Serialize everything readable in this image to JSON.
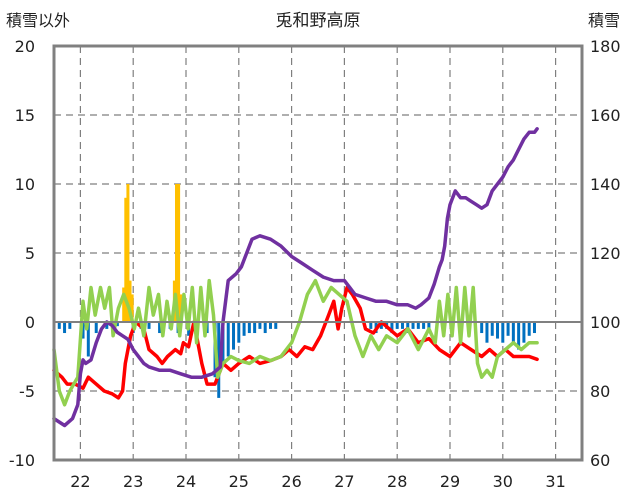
{
  "chart_data": {
    "type": "line",
    "title": "兎和野高原",
    "left_axis_label": "積雪以外",
    "right_axis_label": "積雪",
    "left_ylim": [
      -10,
      20
    ],
    "left_ticks": [
      "20",
      "15",
      "10",
      "5",
      "0",
      "-5",
      "-10"
    ],
    "right_ylim": [
      60,
      180
    ],
    "right_ticks": [
      "180",
      "160",
      "140",
      "120",
      "100",
      "80",
      "60"
    ],
    "xlim": [
      21.5,
      31.5
    ],
    "x_ticks": [
      "22",
      "23",
      "24",
      "25",
      "26",
      "27",
      "28",
      "29",
      "30",
      "31"
    ],
    "grid": "dashed",
    "colors": {
      "temperature": "#ff0000",
      "dewpoint": "#92d050",
      "snow_depth": "#7030a0",
      "precipitation": "#ffc000",
      "negative_bars": "#0070c0",
      "zero_line": "#808080",
      "frame": "#808080",
      "grid": "#7f7f7f"
    },
    "series": [
      {
        "name": "temperature",
        "axis": "left",
        "x": [
          21.5,
          21.65,
          21.75,
          21.9,
          22.05,
          22.15,
          22.3,
          22.45,
          22.6,
          22.72,
          22.8,
          22.85,
          22.95,
          23.05,
          23.2,
          23.3,
          23.45,
          23.55,
          23.65,
          23.8,
          23.9,
          23.95,
          24.05,
          24.15,
          24.3,
          24.4,
          24.55,
          24.7,
          24.85,
          25.0,
          25.2,
          25.4,
          25.6,
          25.8,
          25.95,
          26.1,
          26.25,
          26.4,
          26.55,
          26.7,
          26.8,
          26.88,
          26.95,
          27.05,
          27.15,
          27.3,
          27.4,
          27.55,
          27.7,
          27.85,
          28.0,
          28.2,
          28.4,
          28.6,
          28.8,
          29.0,
          29.2,
          29.4,
          29.6,
          29.75,
          29.9,
          30.05,
          30.2,
          30.35,
          30.5,
          30.65
        ],
        "values": [
          -3.5,
          -4.0,
          -4.5,
          -4.5,
          -4.8,
          -4.0,
          -4.5,
          -5.0,
          -5.2,
          -5.5,
          -5.0,
          -3.0,
          -1.0,
          0.0,
          -0.5,
          -2.0,
          -2.5,
          -3.0,
          -2.5,
          -2.0,
          -2.3,
          -1.5,
          -1.8,
          0.0,
          -3.0,
          -4.5,
          -4.5,
          -3.0,
          -3.5,
          -3.0,
          -2.5,
          -3.0,
          -2.8,
          -2.5,
          -2.0,
          -2.5,
          -1.8,
          -2.0,
          -1.0,
          0.5,
          1.5,
          -0.5,
          1.0,
          2.5,
          2.0,
          1.0,
          -0.5,
          -0.8,
          0.0,
          -0.5,
          -1.0,
          -0.5,
          -1.5,
          -1.2,
          -2.0,
          -2.5,
          -1.5,
          -2.0,
          -2.5,
          -2.0,
          -2.5,
          -2.0,
          -2.5,
          -2.5,
          -2.5,
          -2.7
        ]
      },
      {
        "name": "dewpoint",
        "axis": "left",
        "x": [
          21.5,
          21.6,
          21.7,
          21.8,
          21.95,
          22.05,
          22.12,
          22.2,
          22.28,
          22.38,
          22.46,
          22.55,
          22.62,
          22.72,
          22.82,
          22.92,
          23.02,
          23.1,
          23.2,
          23.3,
          23.38,
          23.48,
          23.56,
          23.64,
          23.72,
          23.8,
          23.88,
          23.96,
          24.04,
          24.12,
          24.2,
          24.28,
          24.36,
          24.44,
          24.52,
          24.6,
          24.7,
          24.85,
          25.0,
          25.2,
          25.4,
          25.6,
          25.8,
          26.0,
          26.15,
          26.3,
          26.45,
          26.6,
          26.75,
          26.9,
          27.05,
          27.2,
          27.35,
          27.5,
          27.65,
          27.8,
          28.0,
          28.2,
          28.4,
          28.6,
          28.72,
          28.8,
          28.88,
          28.96,
          29.04,
          29.12,
          29.2,
          29.28,
          29.36,
          29.44,
          29.52,
          29.6,
          29.7,
          29.8,
          29.9,
          30.05,
          30.2,
          30.35,
          30.5,
          30.65
        ],
        "values": [
          -2.0,
          -5.0,
          -6.0,
          -5.0,
          -4.0,
          1.5,
          -0.5,
          2.5,
          0.5,
          2.5,
          1.0,
          2.5,
          -1.0,
          1.0,
          2.0,
          1.0,
          -0.5,
          1.0,
          -1.0,
          2.5,
          0.5,
          2.0,
          -1.0,
          1.5,
          -0.5,
          2.0,
          -1.0,
          2.0,
          -0.5,
          2.5,
          -1.5,
          2.5,
          -1.0,
          3.0,
          0.5,
          -4.0,
          -3.0,
          -2.5,
          -2.8,
          -3.0,
          -2.5,
          -2.8,
          -2.5,
          -1.5,
          0.0,
          2.0,
          3.0,
          1.5,
          2.5,
          2.0,
          1.5,
          -1.0,
          -2.5,
          -1.0,
          -2.0,
          -1.0,
          -1.5,
          -0.5,
          -2.0,
          -0.5,
          -1.5,
          1.5,
          -1.0,
          2.0,
          -1.0,
          2.5,
          -1.5,
          2.5,
          -1.0,
          2.5,
          -3.0,
          -4.0,
          -3.5,
          -4.0,
          -2.5,
          -2.0,
          -1.5,
          -2.0,
          -1.5,
          -1.5
        ]
      },
      {
        "name": "snow_depth",
        "axis": "right",
        "x": [
          21.5,
          21.7,
          21.85,
          21.95,
          22.0,
          22.05,
          22.1,
          22.2,
          22.3,
          22.4,
          22.5,
          22.6,
          22.7,
          22.8,
          22.9,
          23.0,
          23.1,
          23.2,
          23.3,
          23.5,
          23.7,
          23.9,
          24.1,
          24.3,
          24.5,
          24.65,
          24.7,
          24.8,
          24.95,
          25.05,
          25.15,
          25.25,
          25.4,
          25.6,
          25.8,
          26.0,
          26.2,
          26.4,
          26.6,
          26.8,
          27.0,
          27.1,
          27.2,
          27.4,
          27.6,
          27.8,
          28.0,
          28.2,
          28.35,
          28.45,
          28.6,
          28.7,
          28.8,
          28.85,
          28.9,
          28.95,
          29.0,
          29.1,
          29.2,
          29.3,
          29.4,
          29.5,
          29.6,
          29.7,
          29.8,
          29.9,
          30.0,
          30.1,
          30.2,
          30.3,
          30.4,
          30.5,
          30.6,
          30.65
        ],
        "values": [
          72,
          70,
          72,
          76,
          85,
          89,
          88,
          89,
          94,
          98,
          100,
          99,
          97,
          96,
          95,
          92,
          90,
          88,
          87,
          86,
          86,
          85,
          84,
          84,
          85,
          87,
          100,
          112,
          114,
          116,
          120,
          124,
          125,
          124,
          122,
          119,
          117,
          115,
          113,
          112,
          112,
          110,
          108,
          107,
          106,
          106,
          105,
          105,
          104,
          105,
          107,
          111,
          116,
          118,
          122,
          130,
          134,
          138,
          136,
          136,
          135,
          134,
          133,
          134,
          138,
          140,
          142,
          145,
          147,
          150,
          153,
          155,
          155,
          156
        ]
      }
    ],
    "bars": [
      {
        "name": "precipitation",
        "axis": "left",
        "x": [
          22.82,
          22.86,
          22.9,
          22.94,
          22.98,
          23.78,
          23.82,
          23.86,
          23.9
        ],
        "values": [
          2.5,
          9.0,
          10.0,
          3.0,
          2.0,
          3.0,
          10.0,
          10.0,
          2.0
        ]
      },
      {
        "name": "negative_bars",
        "axis": "left",
        "x": [
          21.6,
          21.7,
          21.8,
          22.05,
          22.15,
          22.3,
          22.5,
          22.7,
          23.0,
          23.15,
          23.3,
          23.5,
          23.7,
          23.85,
          24.05,
          24.2,
          24.4,
          24.55,
          24.62,
          24.7,
          24.8,
          24.9,
          25.0,
          25.1,
          25.2,
          25.3,
          25.4,
          25.5,
          25.6,
          25.7,
          27.5,
          27.6,
          27.7,
          27.8,
          27.9,
          28.0,
          28.1,
          28.2,
          28.3,
          28.4,
          28.5,
          28.6,
          29.6,
          29.7,
          29.8,
          29.9,
          30.0,
          30.1,
          30.2,
          30.3,
          30.4,
          30.5,
          30.6
        ],
        "values": [
          -0.5,
          -0.8,
          -0.5,
          -1.2,
          -2.5,
          -0.8,
          -0.5,
          -0.3,
          -0.8,
          -0.5,
          -0.5,
          -0.8,
          -0.5,
          -0.8,
          -1.0,
          -1.5,
          -0.8,
          -4.0,
          -5.5,
          -3.0,
          -2.5,
          -2.0,
          -1.5,
          -1.0,
          -0.8,
          -0.8,
          -0.5,
          -0.8,
          -0.5,
          -0.5,
          -0.5,
          -0.8,
          -0.5,
          -0.5,
          -0.8,
          -0.5,
          -0.5,
          -0.8,
          -0.5,
          -0.5,
          -0.5,
          -0.5,
          -0.8,
          -1.5,
          -1.0,
          -1.2,
          -1.5,
          -1.0,
          -1.5,
          -2.0,
          -1.5,
          -1.0,
          -0.8
        ]
      }
    ]
  }
}
